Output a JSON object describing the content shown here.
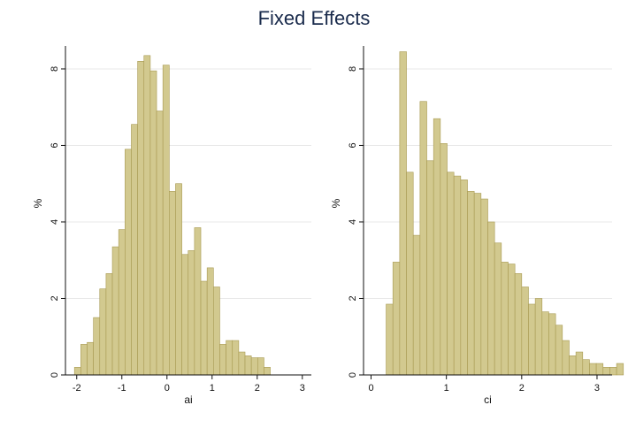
{
  "title": "Fixed Effects",
  "colors": {
    "bar_fill": "#d2c98f",
    "bar_stroke": "#a89a52",
    "grid": "#e8e8e8",
    "axis": "#111111",
    "title": "#1a2b4c"
  },
  "chart_data": [
    {
      "type": "bar",
      "ylabel": "%",
      "xlabel": "ai",
      "xlim": [
        -2.25,
        3.2
      ],
      "ylim": [
        0,
        8.6
      ],
      "x_ticks": [
        -2,
        -1,
        0,
        1,
        2,
        3
      ],
      "y_ticks": [
        0,
        2,
        4,
        6,
        8
      ],
      "grid": true,
      "bin_start": -2.05,
      "bin_width": 0.14,
      "values": [
        0.2,
        0.8,
        0.85,
        1.5,
        2.25,
        2.65,
        3.35,
        3.8,
        5.9,
        6.55,
        8.2,
        8.35,
        7.95,
        6.9,
        8.1,
        4.8,
        5.0,
        3.15,
        3.25,
        3.85,
        2.45,
        2.8,
        2.3,
        0.8,
        0.9,
        0.9,
        0.6,
        0.5,
        0.45,
        0.45,
        0.2
      ]
    },
    {
      "type": "bar",
      "ylabel": "%",
      "xlabel": "ci",
      "xlim": [
        -0.1,
        3.2
      ],
      "ylim": [
        0,
        8.6
      ],
      "x_ticks": [
        0,
        1,
        2,
        3
      ],
      "y_ticks": [
        0,
        2,
        4,
        6,
        8
      ],
      "grid": true,
      "bin_start": 0.2,
      "bin_width": 0.09,
      "values": [
        1.85,
        2.95,
        8.45,
        5.3,
        3.65,
        7.15,
        5.6,
        6.7,
        6.05,
        5.3,
        5.2,
        5.1,
        4.8,
        4.75,
        4.6,
        4.0,
        3.45,
        2.95,
        2.9,
        2.65,
        2.3,
        1.85,
        2.0,
        1.65,
        1.6,
        1.3,
        0.9,
        0.5,
        0.6,
        0.4,
        0.3,
        0.3,
        0.2,
        0.2,
        0.3
      ]
    }
  ]
}
